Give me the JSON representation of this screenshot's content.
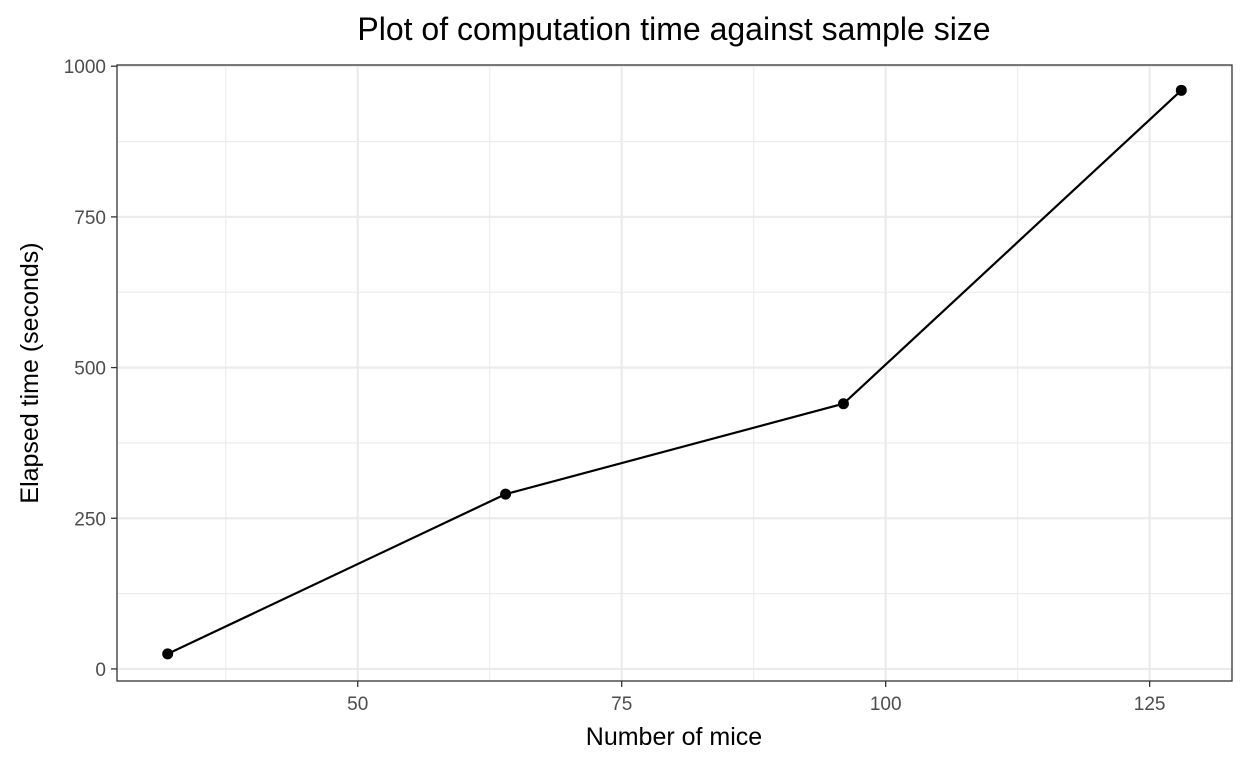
{
  "chart_data": {
    "type": "line",
    "title": "Plot of computation time against sample size",
    "xlabel": "Number of mice",
    "ylabel": "Elapsed time (seconds)",
    "xlim": [
      27.2,
      132.8
    ],
    "ylim": [
      -20,
      1002
    ],
    "x_ticks": [
      50,
      75,
      100,
      125
    ],
    "y_ticks": [
      0,
      250,
      500,
      750,
      1000
    ],
    "x_minor": [
      37.5,
      62.5,
      87.5,
      112.5
    ],
    "y_minor": [
      125,
      375,
      625,
      875
    ],
    "grid": true,
    "legend": "none",
    "series": [
      {
        "x": [
          32,
          64,
          96,
          128
        ],
        "y": [
          25,
          290,
          440,
          960
        ]
      }
    ],
    "colors": {
      "line": "#000000",
      "point": "#000000",
      "grid": "#ebebeb",
      "panel_border": "#333333",
      "tick_text": "#4d4d4d"
    }
  }
}
